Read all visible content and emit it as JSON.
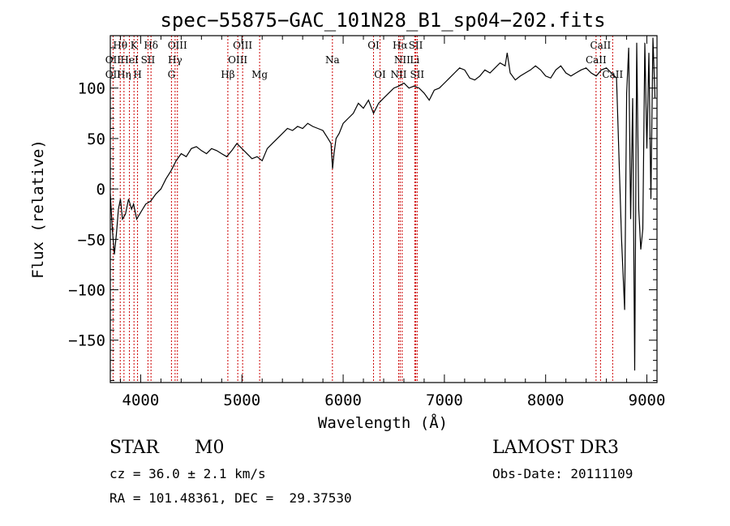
{
  "chart_data": {
    "type": "line",
    "title": "spec−55875−GAC_101N28_B1_sp04−202.fits",
    "xlabel": "Wavelength (Å)",
    "ylabel": "Flux (relative)",
    "xlim": [
      3700,
      9100
    ],
    "ylim": [
      -192,
      152
    ],
    "xticks": [
      4000,
      5000,
      6000,
      7000,
      8000,
      9000
    ],
    "yticks": [
      100,
      50,
      0,
      -50,
      -100,
      -150
    ],
    "ytick_labels": [
      "100",
      "50",
      "0",
      "−50",
      "−100",
      "−150"
    ],
    "series": [
      {
        "color": "#000000",
        "x": [
          3700,
          3720,
          3740,
          3760,
          3780,
          3800,
          3820,
          3850,
          3880,
          3910,
          3930,
          3960,
          3990,
          4020,
          4050,
          4100,
          4150,
          4200,
          4250,
          4300,
          4350,
          4400,
          4450,
          4500,
          4550,
          4600,
          4650,
          4700,
          4750,
          4800,
          4850,
          4900,
          4950,
          5000,
          5050,
          5100,
          5150,
          5200,
          5250,
          5300,
          5350,
          5400,
          5450,
          5500,
          5550,
          5600,
          5650,
          5700,
          5750,
          5800,
          5850,
          5880,
          5895,
          5910,
          5930,
          5960,
          6000,
          6050,
          6100,
          6150,
          6200,
          6250,
          6300,
          6350,
          6400,
          6450,
          6500,
          6550,
          6600,
          6650,
          6700,
          6750,
          6800,
          6850,
          6900,
          6950,
          7000,
          7050,
          7100,
          7150,
          7200,
          7250,
          7300,
          7350,
          7400,
          7450,
          7500,
          7550,
          7600,
          7620,
          7650,
          7700,
          7750,
          7800,
          7850,
          7900,
          7950,
          8000,
          8050,
          8100,
          8150,
          8200,
          8250,
          8300,
          8350,
          8400,
          8450,
          8500,
          8550,
          8600,
          8650,
          8700,
          8750,
          8780,
          8800,
          8820,
          8840,
          8860,
          8880,
          8900,
          8920,
          8940,
          8960,
          8980,
          9000,
          9020,
          9040,
          9060,
          9080
        ],
        "y": [
          -5,
          -40,
          -65,
          -45,
          -20,
          -10,
          -30,
          -25,
          -10,
          -20,
          -15,
          -30,
          -25,
          -20,
          -15,
          -12,
          -5,
          0,
          10,
          18,
          28,
          35,
          32,
          40,
          42,
          38,
          35,
          40,
          38,
          35,
          32,
          38,
          45,
          40,
          35,
          30,
          32,
          28,
          40,
          45,
          50,
          55,
          60,
          58,
          62,
          60,
          65,
          62,
          60,
          58,
          50,
          45,
          20,
          35,
          50,
          55,
          65,
          70,
          75,
          85,
          80,
          88,
          75,
          85,
          90,
          95,
          100,
          102,
          105,
          100,
          102,
          100,
          95,
          88,
          98,
          100,
          105,
          110,
          115,
          120,
          118,
          110,
          108,
          112,
          118,
          115,
          120,
          125,
          122,
          135,
          115,
          108,
          112,
          115,
          118,
          122,
          118,
          112,
          110,
          118,
          122,
          115,
          112,
          115,
          118,
          120,
          115,
          112,
          118,
          120,
          115,
          110,
          -50,
          -120,
          95,
          140,
          -30,
          90,
          -180,
          145,
          -20,
          -60,
          -40,
          145,
          40,
          135,
          -10,
          150,
          90
        ]
      }
    ],
    "lines": [
      {
        "lambda": 3727,
        "labels": [
          "OII",
          "OII"
        ]
      },
      {
        "lambda": 3798,
        "labels": [
          "Hθ"
        ]
      },
      {
        "lambda": 3835,
        "labels": [
          "Hη"
        ]
      },
      {
        "lambda": 3889,
        "labels": [
          "HeI"
        ]
      },
      {
        "lambda": 3934,
        "labels": [
          "K"
        ]
      },
      {
        "lambda": 3969,
        "labels": [
          "H"
        ]
      },
      {
        "lambda": 4072,
        "labels": [
          "SII"
        ]
      },
      {
        "lambda": 4102,
        "labels": [
          "Hδ"
        ]
      },
      {
        "lambda": 4304,
        "labels": [
          "G"
        ]
      },
      {
        "lambda": 4340,
        "labels": [
          "Hγ"
        ]
      },
      {
        "lambda": 4363,
        "labels": [
          "OIII"
        ]
      },
      {
        "lambda": 4861,
        "labels": [
          "Hβ"
        ]
      },
      {
        "lambda": 4959,
        "labels": [
          "OIII"
        ]
      },
      {
        "lambda": 5007,
        "labels": [
          "OIII"
        ]
      },
      {
        "lambda": 5175,
        "labels": [
          "Mg"
        ]
      },
      {
        "lambda": 5894,
        "labels": [
          "Na"
        ]
      },
      {
        "lambda": 6300,
        "labels": [
          "OI"
        ]
      },
      {
        "lambda": 6364,
        "labels": [
          "OI"
        ]
      },
      {
        "lambda": 6548,
        "labels": [
          "NII"
        ]
      },
      {
        "lambda": 6563,
        "labels": [
          "Hα"
        ]
      },
      {
        "lambda": 6583,
        "labels": [
          "NII"
        ]
      },
      {
        "lambda": 6707,
        "labels": [
          "Li"
        ]
      },
      {
        "lambda": 6717,
        "labels": [
          "SII"
        ]
      },
      {
        "lambda": 6731,
        "labels": [
          "SII"
        ]
      },
      {
        "lambda": 8498,
        "labels": [
          "CaII"
        ]
      },
      {
        "lambda": 8542,
        "labels": [
          "CaII"
        ]
      },
      {
        "lambda": 8662,
        "labels": [
          "CaII"
        ]
      }
    ],
    "line_label_rows": [
      [
        {
          "t": "Hθ",
          "x": 3798
        },
        {
          "t": "K",
          "x": 3934
        },
        {
          "t": "Hδ",
          "x": 4102
        },
        {
          "t": "OIII",
          "x": 4363
        },
        {
          "t": "OIII",
          "x": 5007
        },
        {
          "t": "OI",
          "x": 6300
        },
        {
          "t": "Hα",
          "x": 6563
        },
        {
          "t": "SII",
          "x": 6717
        },
        {
          "t": "CaII",
          "x": 8542
        }
      ],
      [
        {
          "t": "OII",
          "x": 3727
        },
        {
          "t": "HeI",
          "x": 3889
        },
        {
          "t": "SII",
          "x": 4072
        },
        {
          "t": "Hγ",
          "x": 4340
        },
        {
          "t": "OIII",
          "x": 4959
        },
        {
          "t": "Na",
          "x": 5894
        },
        {
          "t": "NII",
          "x": 6583
        },
        {
          "t": "Li",
          "x": 6707
        },
        {
          "t": "CaII",
          "x": 8498
        }
      ],
      [
        {
          "t": "OII",
          "x": 3727
        },
        {
          "t": "Hη",
          "x": 3835
        },
        {
          "t": "H",
          "x": 3969
        },
        {
          "t": "G",
          "x": 4304
        },
        {
          "t": "Hβ",
          "x": 4861
        },
        {
          "t": "Mg",
          "x": 5175
        },
        {
          "t": "OI",
          "x": 6364
        },
        {
          "t": "NII",
          "x": 6548
        },
        {
          "t": "SII",
          "x": 6731
        },
        {
          "t": "CaII",
          "x": 8662
        }
      ]
    ],
    "grid": false,
    "line_marker_color": "#cc0000"
  },
  "info": {
    "object_class": "STAR",
    "subclass": "M0",
    "survey": "LAMOST DR3",
    "redshift": "cz = 36.0 ± 2.1 km/s",
    "obs_date": "Obs-Date: 20111109",
    "coords": "RA = 101.48361, DEC =  29.37530"
  }
}
